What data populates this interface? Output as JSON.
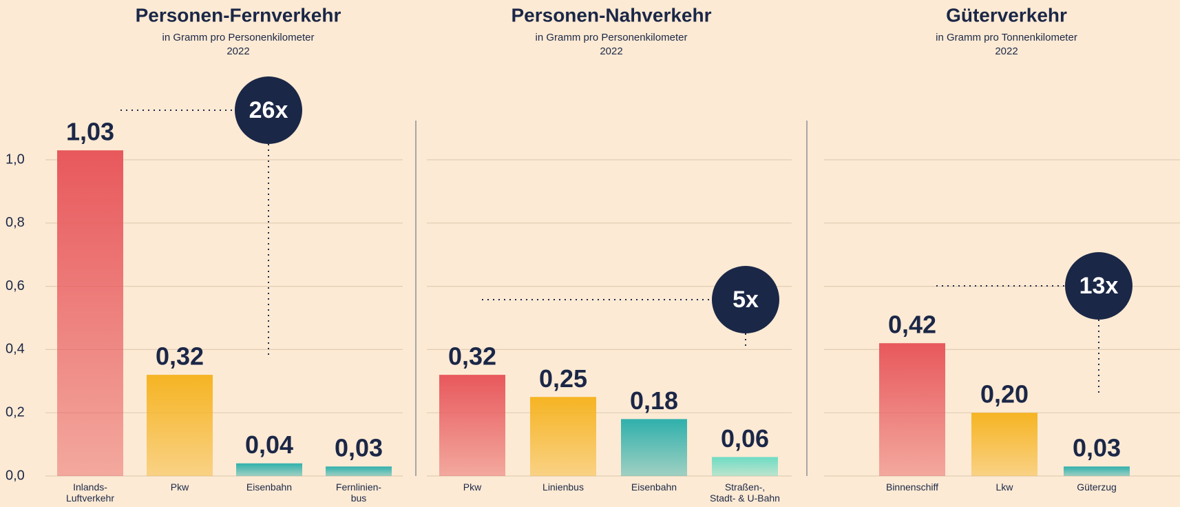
{
  "chart_data": [
    {
      "type": "bar",
      "title": "Personen-Fernverkehr",
      "subtitle": "in Gramm pro Personenkilometer",
      "year": "2022",
      "categories": [
        "Inlands-\nLuftverkehr",
        "Pkw",
        "Eisenbahn",
        "Fernlinien-\nbus"
      ],
      "values": [
        1.03,
        0.32,
        0.04,
        0.03
      ],
      "value_labels": [
        "1,03",
        "0,32",
        "0,04",
        "0,03"
      ],
      "colors": [
        "#e8585c",
        "#f6b423",
        "#2fb0ac",
        "#2fb0ac"
      ],
      "annotation": "26x",
      "ylim": [
        0,
        1.0
      ],
      "yticks": [
        {
          "value": 0,
          "label": "0,0"
        },
        {
          "value": 0.2,
          "label": "0,2"
        },
        {
          "value": 0.4,
          "label": "0,4"
        },
        {
          "value": 0.6,
          "label": "0,6"
        },
        {
          "value": 0.8,
          "label": "0,8"
        },
        {
          "value": 1.0,
          "label": "1,0"
        }
      ],
      "grid": true
    },
    {
      "type": "bar",
      "title": "Personen-Nahverkehr",
      "subtitle": "in Gramm pro Personenkilometer",
      "year": "2022",
      "categories": [
        "Pkw",
        "Linienbus",
        "Eisenbahn",
        "Straßen-,\nStadt- & U-Bahn"
      ],
      "values": [
        0.32,
        0.25,
        0.18,
        0.06
      ],
      "value_labels": [
        "0,32",
        "0,25",
        "0,18",
        "0,06"
      ],
      "colors": [
        "#e8585c",
        "#f6b423",
        "#2fb0ac",
        "#6fdcc4"
      ],
      "annotation": "5x",
      "ylim": [
        0,
        1.0
      ],
      "grid": true
    },
    {
      "type": "bar",
      "title": "Güterverkehr",
      "subtitle": "in Gramm pro Tonnenkilometer",
      "year": "2022",
      "categories": [
        "Binnenschiff",
        "Lkw",
        "Güterzug"
      ],
      "values": [
        0.42,
        0.2,
        0.03
      ],
      "value_labels": [
        "0,42",
        "0,20",
        "0,03"
      ],
      "colors": [
        "#e8585c",
        "#f6b423",
        "#2fb0ac"
      ],
      "annotation": "13x",
      "ylim": [
        0,
        1.0
      ],
      "grid": true
    }
  ]
}
